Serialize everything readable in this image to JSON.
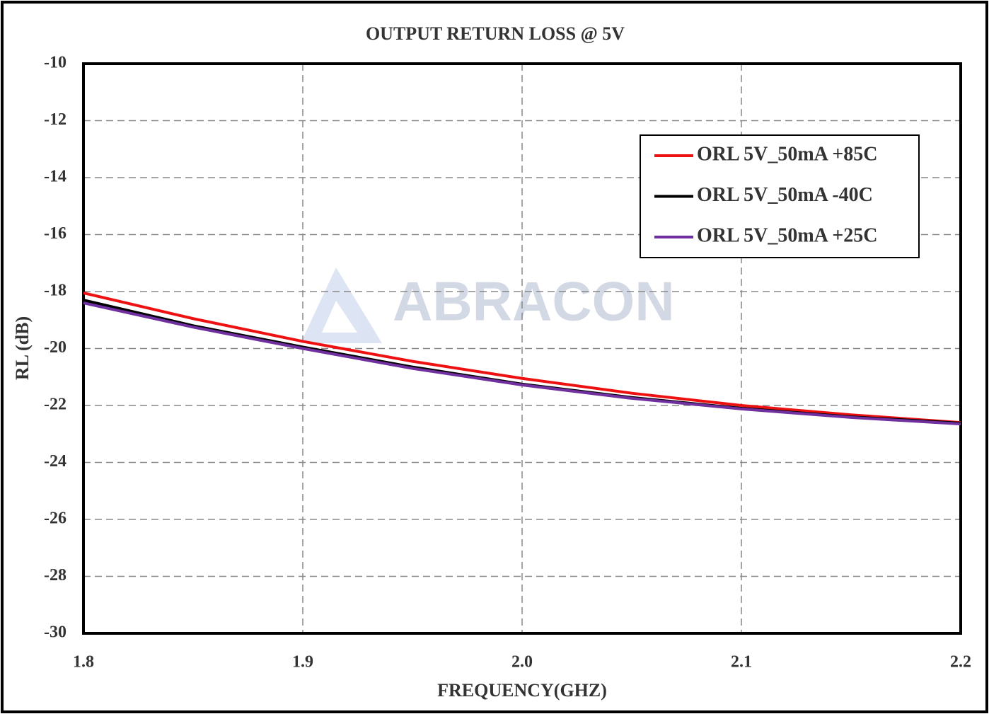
{
  "chart_data": {
    "type": "line",
    "title": "OUTPUT RETURN LOSS @ 5V",
    "x_label": "FREQUENCY(GHZ)",
    "y_label": "RL (dB)",
    "watermark": "ABRACON",
    "x": [
      1.8,
      1.85,
      1.9,
      1.95,
      2.0,
      2.05,
      2.1,
      2.15,
      2.2
    ],
    "series": [
      {
        "name": "ORL 5V_50mA +85C",
        "color": "#ee1111",
        "values": [
          -18.05,
          -18.95,
          -19.75,
          -20.45,
          -21.05,
          -21.57,
          -22.0,
          -22.33,
          -22.6
        ]
      },
      {
        "name": "ORL 5V_50mA -40C",
        "color": "#000000",
        "values": [
          -18.3,
          -19.2,
          -19.95,
          -20.65,
          -21.25,
          -21.72,
          -22.1,
          -22.4,
          -22.62
        ]
      },
      {
        "name": "ORL 5V_50mA +25C",
        "color": "#7030a0",
        "values": [
          -18.4,
          -19.25,
          -20.0,
          -20.7,
          -21.28,
          -21.75,
          -22.12,
          -22.42,
          -22.65
        ]
      }
    ],
    "xlim": [
      1.8,
      2.2
    ],
    "xticks": [
      1.8,
      1.9,
      {
        "value": 2,
        "label": "2.0"
      },
      2.1,
      2.2
    ],
    "ylim": [
      -30,
      -10
    ],
    "yticks": [
      -10,
      -12,
      -14,
      -16,
      -18,
      -20,
      -22,
      -24,
      -26,
      -28,
      -30
    ],
    "grid": true,
    "legend": "upper right"
  }
}
